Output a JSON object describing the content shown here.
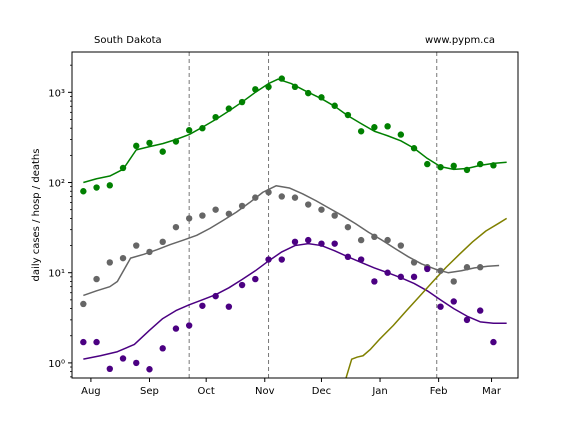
{
  "header": {
    "left": "South Dakota",
    "right": "www.pypm.ca"
  },
  "chart_data": {
    "type": "scatter",
    "ylabel": "daily cases / hosp / deaths",
    "yscale": "log",
    "ylim": [
      0.68,
      2800
    ],
    "xlim": [
      "2020-07-22",
      "2021-03-15"
    ],
    "x_ticks": [
      {
        "date": "2020-08-01",
        "label": "Aug"
      },
      {
        "date": "2020-09-01",
        "label": "Sep"
      },
      {
        "date": "2020-10-01",
        "label": "Oct"
      },
      {
        "date": "2020-11-01",
        "label": "Nov"
      },
      {
        "date": "2020-12-01",
        "label": "Dec"
      },
      {
        "date": "2021-01-01",
        "label": "Jan"
      },
      {
        "date": "2021-02-01",
        "label": "Feb"
      },
      {
        "date": "2021-03-01",
        "label": "Mar"
      }
    ],
    "y_ticks": [
      {
        "value": 1,
        "label": "10⁰"
      },
      {
        "value": 10,
        "label": "10¹"
      },
      {
        "value": 100,
        "label": "10²"
      },
      {
        "value": 1000,
        "label": "10³"
      }
    ],
    "vlines": [
      "2020-09-22",
      "2020-11-03",
      "2021-01-31"
    ],
    "series": [
      {
        "kind": "points",
        "color": "#008000",
        "points": [
          [
            "2020-07-28",
            80
          ],
          [
            "2020-08-04",
            88
          ],
          [
            "2020-08-11",
            93
          ],
          [
            "2020-08-18",
            145
          ],
          [
            "2020-08-25",
            255
          ],
          [
            "2020-09-01",
            275
          ],
          [
            "2020-09-08",
            220
          ],
          [
            "2020-09-15",
            285
          ],
          [
            "2020-09-22",
            380
          ],
          [
            "2020-09-29",
            400
          ],
          [
            "2020-10-06",
            530
          ],
          [
            "2020-10-13",
            660
          ],
          [
            "2020-10-20",
            780
          ],
          [
            "2020-10-27",
            1080
          ],
          [
            "2020-11-03",
            1150
          ],
          [
            "2020-11-10",
            1420
          ],
          [
            "2020-11-17",
            1150
          ],
          [
            "2020-11-24",
            980
          ],
          [
            "2020-12-01",
            880
          ],
          [
            "2020-12-08",
            710
          ],
          [
            "2020-12-15",
            560
          ],
          [
            "2020-12-22",
            370
          ],
          [
            "2020-12-29",
            410
          ],
          [
            "2021-01-05",
            420
          ],
          [
            "2021-01-12",
            340
          ],
          [
            "2021-01-19",
            240
          ],
          [
            "2021-01-26",
            160
          ],
          [
            "2021-02-02",
            148
          ],
          [
            "2021-02-09",
            153
          ],
          [
            "2021-02-16",
            138
          ],
          [
            "2021-02-23",
            160
          ],
          [
            "2021-03-02",
            155
          ]
        ]
      },
      {
        "kind": "points",
        "color": "#666666",
        "points": [
          [
            "2020-07-28",
            4.5
          ],
          [
            "2020-08-04",
            8.5
          ],
          [
            "2020-08-11",
            13
          ],
          [
            "2020-08-18",
            14.5
          ],
          [
            "2020-08-25",
            20
          ],
          [
            "2020-09-01",
            17
          ],
          [
            "2020-09-08",
            22
          ],
          [
            "2020-09-15",
            32
          ],
          [
            "2020-09-22",
            40
          ],
          [
            "2020-09-29",
            43
          ],
          [
            "2020-10-06",
            50
          ],
          [
            "2020-10-13",
            45
          ],
          [
            "2020-10-20",
            55
          ],
          [
            "2020-10-27",
            68
          ],
          [
            "2020-11-03",
            78
          ],
          [
            "2020-11-10",
            70
          ],
          [
            "2020-11-17",
            68
          ],
          [
            "2020-11-24",
            57
          ],
          [
            "2020-12-01",
            50
          ],
          [
            "2020-12-08",
            43
          ],
          [
            "2020-12-15",
            32
          ],
          [
            "2020-12-22",
            23
          ],
          [
            "2020-12-29",
            25
          ],
          [
            "2021-01-05",
            23
          ],
          [
            "2021-01-12",
            20
          ],
          [
            "2021-01-19",
            13
          ],
          [
            "2021-01-26",
            11.5
          ],
          [
            "2021-02-02",
            10.5
          ],
          [
            "2021-02-09",
            8
          ],
          [
            "2021-02-16",
            11.5
          ],
          [
            "2021-02-23",
            11.5
          ]
        ]
      },
      {
        "kind": "points",
        "color": "#4b0082",
        "points": [
          [
            "2020-07-28",
            1.7
          ],
          [
            "2020-08-04",
            1.7
          ],
          [
            "2020-08-11",
            0.86
          ],
          [
            "2020-08-18",
            1.12
          ],
          [
            "2020-08-25",
            1.0
          ],
          [
            "2020-09-01",
            0.85
          ],
          [
            "2020-09-08",
            1.45
          ],
          [
            "2020-09-15",
            2.4
          ],
          [
            "2020-09-22",
            2.6
          ],
          [
            "2020-09-29",
            4.3
          ],
          [
            "2020-10-06",
            5.5
          ],
          [
            "2020-10-13",
            4.2
          ],
          [
            "2020-10-20",
            7.3
          ],
          [
            "2020-10-27",
            8.5
          ],
          [
            "2020-11-03",
            14
          ],
          [
            "2020-11-10",
            14
          ],
          [
            "2020-11-17",
            22
          ],
          [
            "2020-11-24",
            23
          ],
          [
            "2020-12-01",
            21
          ],
          [
            "2020-12-08",
            21
          ],
          [
            "2020-12-15",
            15
          ],
          [
            "2020-12-22",
            14
          ],
          [
            "2020-12-29",
            8
          ],
          [
            "2021-01-05",
            10
          ],
          [
            "2021-01-12",
            9
          ],
          [
            "2021-01-19",
            9
          ],
          [
            "2021-01-26",
            11
          ],
          [
            "2021-02-02",
            4.2
          ],
          [
            "2021-02-09",
            4.8
          ],
          [
            "2021-02-16",
            3.0
          ],
          [
            "2021-02-23",
            3.8
          ],
          [
            "2021-03-02",
            1.7
          ]
        ]
      },
      {
        "kind": "line",
        "color": "#008000",
        "points": [
          [
            "2020-07-28",
            100
          ],
          [
            "2020-08-04",
            110
          ],
          [
            "2020-08-11",
            118
          ],
          [
            "2020-08-18",
            140
          ],
          [
            "2020-08-25",
            230
          ],
          [
            "2020-09-01",
            250
          ],
          [
            "2020-09-08",
            270
          ],
          [
            "2020-09-15",
            300
          ],
          [
            "2020-09-22",
            340
          ],
          [
            "2020-09-29",
            410
          ],
          [
            "2020-10-06",
            500
          ],
          [
            "2020-10-13",
            620
          ],
          [
            "2020-10-20",
            780
          ],
          [
            "2020-10-27",
            1000
          ],
          [
            "2020-11-03",
            1250
          ],
          [
            "2020-11-08",
            1400
          ],
          [
            "2020-11-15",
            1250
          ],
          [
            "2020-11-22",
            1050
          ],
          [
            "2020-12-01",
            850
          ],
          [
            "2020-12-08",
            700
          ],
          [
            "2020-12-15",
            550
          ],
          [
            "2020-12-22",
            450
          ],
          [
            "2020-12-29",
            370
          ],
          [
            "2021-01-05",
            330
          ],
          [
            "2021-01-12",
            290
          ],
          [
            "2021-01-19",
            240
          ],
          [
            "2021-01-26",
            185
          ],
          [
            "2021-02-02",
            150
          ],
          [
            "2021-02-09",
            140
          ],
          [
            "2021-02-16",
            143
          ],
          [
            "2021-02-23",
            155
          ],
          [
            "2021-03-02",
            163
          ],
          [
            "2021-03-09",
            168
          ]
        ]
      },
      {
        "kind": "line",
        "color": "#666666",
        "points": [
          [
            "2020-07-28",
            5.6
          ],
          [
            "2020-08-04",
            6.3
          ],
          [
            "2020-08-11",
            7.0
          ],
          [
            "2020-08-15",
            8.0
          ],
          [
            "2020-08-22",
            14.5
          ],
          [
            "2020-08-29",
            16
          ],
          [
            "2020-09-05",
            18
          ],
          [
            "2020-09-12",
            20.5
          ],
          [
            "2020-09-19",
            23
          ],
          [
            "2020-09-26",
            26
          ],
          [
            "2020-10-03",
            31
          ],
          [
            "2020-10-10",
            38
          ],
          [
            "2020-10-17",
            47
          ],
          [
            "2020-10-24",
            60
          ],
          [
            "2020-10-31",
            78
          ],
          [
            "2020-11-07",
            92
          ],
          [
            "2020-11-14",
            87
          ],
          [
            "2020-11-21",
            75
          ],
          [
            "2020-11-28",
            63
          ],
          [
            "2020-12-05",
            52
          ],
          [
            "2020-12-12",
            43
          ],
          [
            "2020-12-19",
            35
          ],
          [
            "2020-12-26",
            28
          ],
          [
            "2021-01-02",
            23
          ],
          [
            "2021-01-09",
            18.5
          ],
          [
            "2021-01-16",
            15
          ],
          [
            "2021-01-23",
            12.5
          ],
          [
            "2021-01-30",
            11
          ],
          [
            "2021-02-06",
            10
          ],
          [
            "2021-02-13",
            10.5
          ],
          [
            "2021-02-20",
            11.3
          ],
          [
            "2021-02-27",
            11.8
          ],
          [
            "2021-03-05",
            12
          ]
        ]
      },
      {
        "kind": "line",
        "color": "#4b0082",
        "points": [
          [
            "2020-07-28",
            1.1
          ],
          [
            "2020-08-06",
            1.2
          ],
          [
            "2020-08-15",
            1.33
          ],
          [
            "2020-08-24",
            1.6
          ],
          [
            "2020-09-01",
            2.3
          ],
          [
            "2020-09-08",
            3.1
          ],
          [
            "2020-09-15",
            3.8
          ],
          [
            "2020-09-22",
            4.4
          ],
          [
            "2020-09-29",
            5.0
          ],
          [
            "2020-10-06",
            5.7
          ],
          [
            "2020-10-13",
            6.8
          ],
          [
            "2020-10-20",
            8.4
          ],
          [
            "2020-10-27",
            10.5
          ],
          [
            "2020-11-03",
            13.5
          ],
          [
            "2020-11-10",
            17
          ],
          [
            "2020-11-17",
            20
          ],
          [
            "2020-11-24",
            21
          ],
          [
            "2020-12-01",
            20
          ],
          [
            "2020-12-08",
            17.5
          ],
          [
            "2020-12-15",
            15
          ],
          [
            "2020-12-22",
            13
          ],
          [
            "2020-12-29",
            11.3
          ],
          [
            "2021-01-05",
            10
          ],
          [
            "2021-01-12",
            8.8
          ],
          [
            "2021-01-19",
            7.6
          ],
          [
            "2021-01-26",
            6.3
          ],
          [
            "2021-02-02",
            5.0
          ],
          [
            "2021-02-09",
            4.0
          ],
          [
            "2021-02-16",
            3.3
          ],
          [
            "2021-02-23",
            2.85
          ],
          [
            "2021-03-02",
            2.75
          ],
          [
            "2021-03-09",
            2.75
          ]
        ]
      },
      {
        "kind": "line",
        "color": "#808000",
        "points": [
          [
            "2020-12-14",
            0.68
          ],
          [
            "2020-12-17",
            1.1
          ],
          [
            "2020-12-20",
            1.16
          ],
          [
            "2020-12-23",
            1.2
          ],
          [
            "2020-12-27",
            1.42
          ],
          [
            "2021-01-01",
            1.85
          ],
          [
            "2021-01-08",
            2.6
          ],
          [
            "2021-01-15",
            3.8
          ],
          [
            "2021-01-22",
            5.5
          ],
          [
            "2021-01-29",
            8.0
          ],
          [
            "2021-02-05",
            11.5
          ],
          [
            "2021-02-12",
            16
          ],
          [
            "2021-02-19",
            22
          ],
          [
            "2021-02-26",
            29
          ],
          [
            "2021-03-05",
            35.5
          ],
          [
            "2021-03-09",
            40
          ]
        ]
      }
    ]
  }
}
